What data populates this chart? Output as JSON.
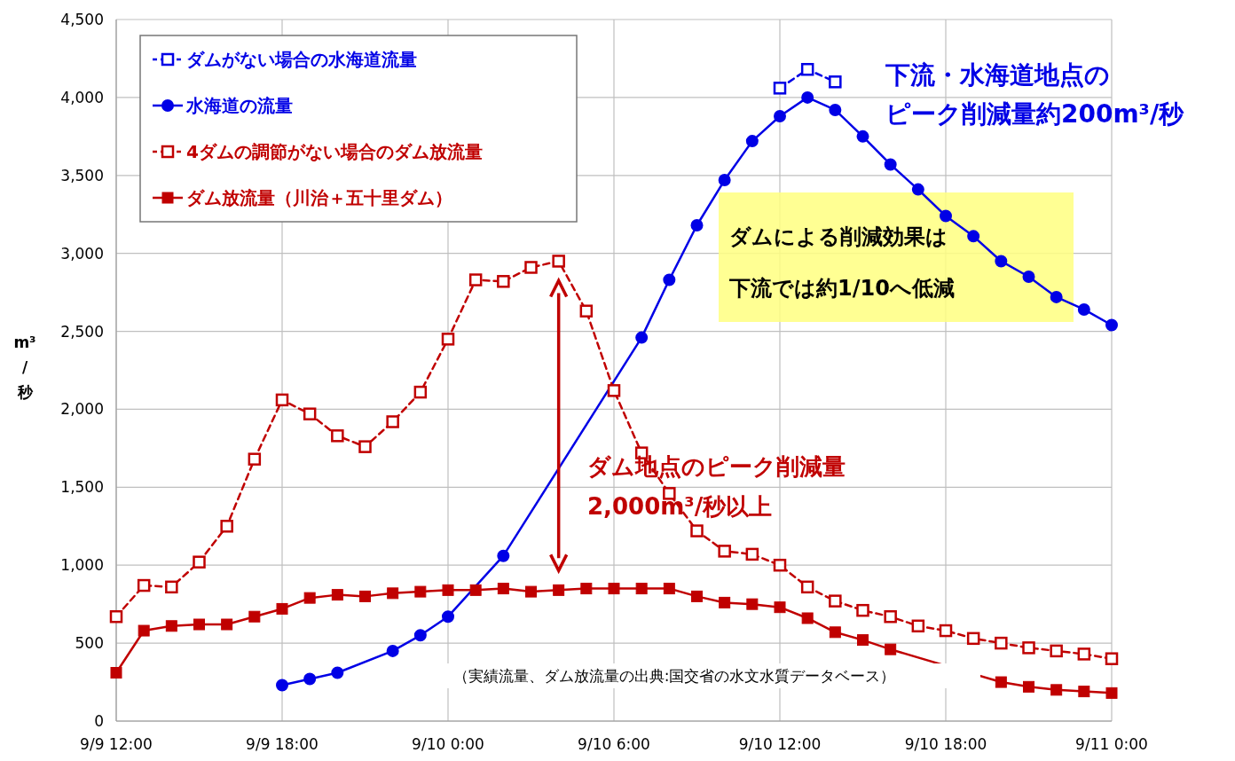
{
  "chart_data": {
    "type": "line",
    "ylabel": "m³/秒",
    "ylim": [
      0,
      4500
    ],
    "categories": [
      "9/9 12:00",
      null,
      null,
      null,
      null,
      null,
      "9/9 18:00",
      null,
      null,
      null,
      null,
      null,
      "9/10 0:00",
      null,
      null,
      null,
      null,
      null,
      "9/10 6:00",
      null,
      null,
      null,
      null,
      null,
      "9/10 12:00",
      null,
      null,
      null,
      null,
      null,
      "9/10 18:00",
      null,
      null,
      null,
      null,
      null,
      "9/11 0:00"
    ],
    "yticks": [
      0,
      500,
      {
        "value": 1000,
        "label": "1,000"
      },
      {
        "value": 1500,
        "label": "1,500"
      },
      {
        "value": 2000,
        "label": "2,000"
      },
      {
        "value": 2500,
        "label": "2,500"
      },
      {
        "value": 3000,
        "label": "3,000"
      },
      {
        "value": 3500,
        "label": "3,500"
      },
      {
        "value": 4000,
        "label": "4,000"
      },
      {
        "value": 4500,
        "label": "4,500"
      }
    ],
    "grid": true,
    "legend": "top left",
    "series": [
      {
        "name": "ダムがない場合の水海道流量",
        "color": "#0000e6",
        "marker": "square",
        "line_style": "dashed",
        "values": [
          null,
          null,
          null,
          null,
          null,
          null,
          null,
          null,
          null,
          null,
          null,
          null,
          null,
          null,
          null,
          null,
          null,
          null,
          null,
          null,
          null,
          null,
          null,
          null,
          4060,
          4180,
          4100,
          null,
          null,
          null,
          null,
          null,
          null,
          null,
          null,
          null,
          null
        ]
      },
      {
        "name": "水海道の流量",
        "color": "#0000e6",
        "marker": "circle",
        "line_style": "solid",
        "values": [
          null,
          null,
          null,
          null,
          null,
          null,
          230,
          270,
          310,
          null,
          450,
          550,
          670,
          null,
          1060,
          null,
          null,
          null,
          null,
          2460,
          2830,
          3180,
          3470,
          3720,
          3880,
          4000,
          3920,
          3750,
          3570,
          3410,
          3240,
          3110,
          2950,
          2850,
          2720,
          2640,
          2540
        ]
      },
      {
        "name": "4ダムの調節がない場合のダム放流量",
        "color": "#c00000",
        "marker": "square",
        "line_style": "dashed",
        "values": [
          670,
          870,
          860,
          1020,
          1250,
          1680,
          2060,
          1970,
          1830,
          1760,
          1920,
          2110,
          2450,
          2830,
          2820,
          2910,
          2950,
          2630,
          2120,
          1720,
          1460,
          1220,
          1090,
          1070,
          1000,
          860,
          770,
          710,
          670,
          610,
          580,
          530,
          500,
          470,
          450,
          430,
          400
        ]
      },
      {
        "name": "ダム放流量（川治＋五十里ダム）",
        "color": "#c00000",
        "marker": "square",
        "line_style": "solid",
        "values": [
          310,
          580,
          610,
          620,
          620,
          670,
          720,
          790,
          810,
          800,
          820,
          830,
          840,
          840,
          850,
          830,
          840,
          850,
          850,
          850,
          850,
          800,
          760,
          750,
          730,
          660,
          570,
          520,
          460,
          null,
          null,
          null,
          250,
          220,
          200,
          190,
          180
        ]
      }
    ],
    "annotations": [
      "下流・水海道地点のピーク削減量約200m³/秒",
      "ダムによる削減効果は下流では約1/10へ低減",
      "ダム地点のピーク削減量2,000m³/秒以上",
      "（実績流量、ダム放流量の出典:国交省の水文水質データベース）"
    ]
  }
}
